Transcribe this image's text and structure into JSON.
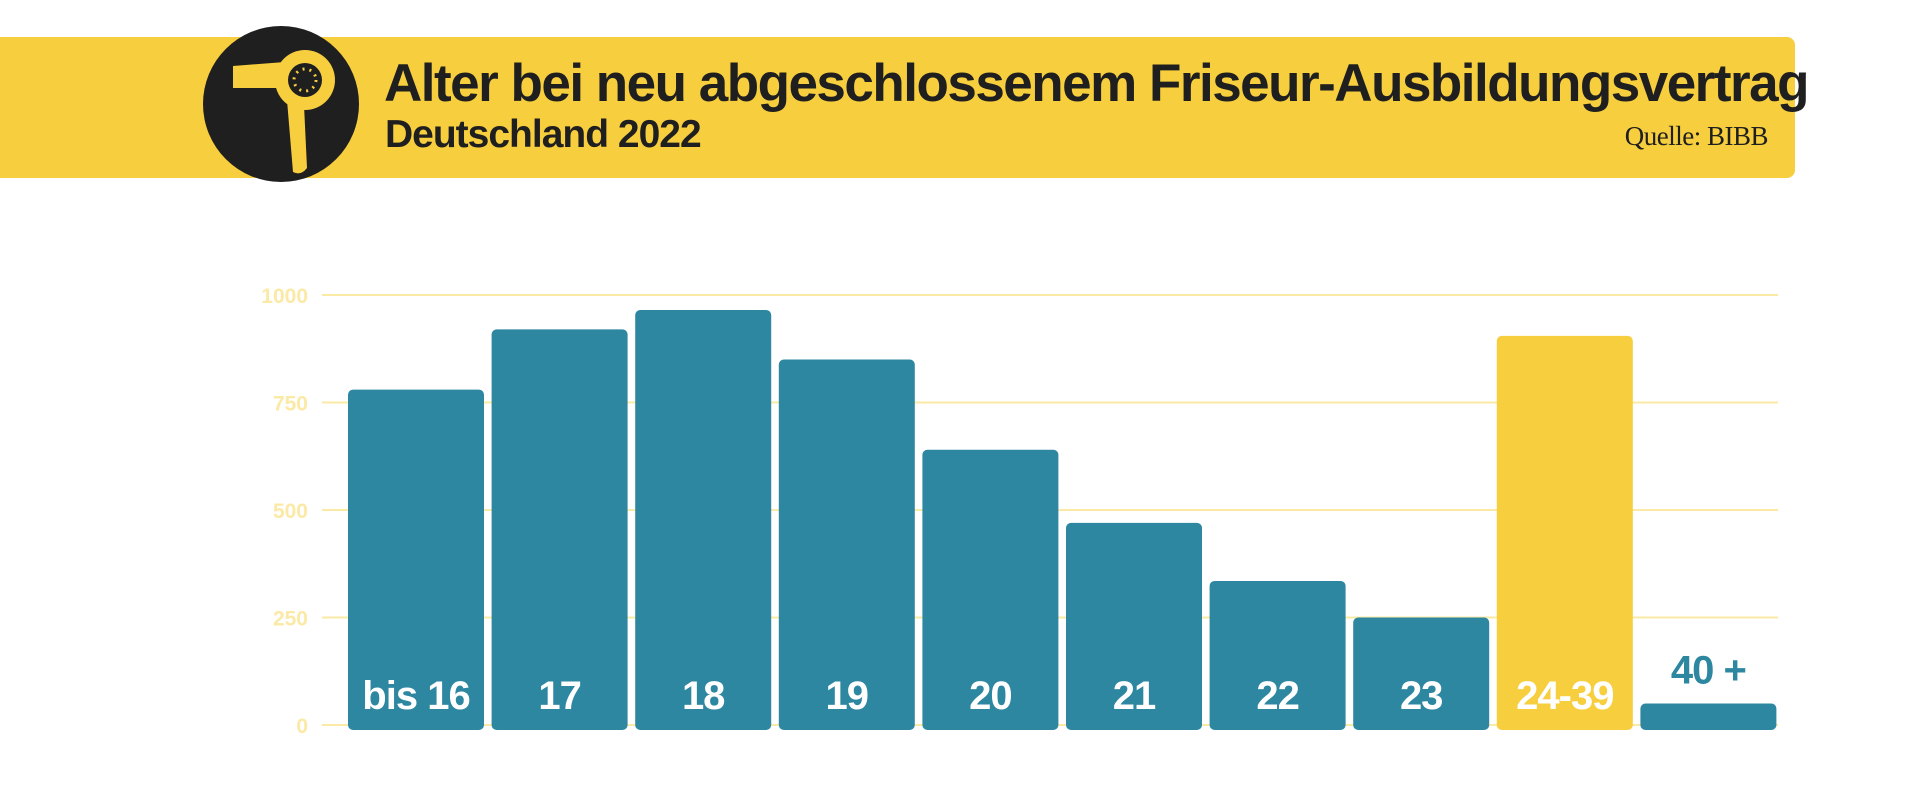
{
  "header": {
    "title": "Alter bei neu abgeschlossenem Friseur-Ausbildungsvertrag",
    "subtitle": "Deutschland 2022",
    "source": "Quelle: BIBB",
    "logo_icon": "hair-dryer-icon"
  },
  "colors": {
    "accent": "#f7ce3e",
    "bar": "#2e87a1",
    "highlight_bar": "#f7ce3e",
    "grid": "#fbe9a6",
    "tick_text": "#fbe9a6",
    "dark": "#1f1f1f",
    "label_on_bar": "#ffffff"
  },
  "chart_data": {
    "type": "bar",
    "title": "Alter bei neu abgeschlossenem Friseur-Ausbildungsvertrag",
    "subtitle": "Deutschland 2022",
    "xlabel": "",
    "ylabel": "",
    "categories": [
      "bis 16",
      "17",
      "18",
      "19",
      "20",
      "21",
      "22",
      "23",
      "24-39",
      "40 +"
    ],
    "values": [
      780,
      920,
      965,
      850,
      640,
      470,
      335,
      250,
      905,
      50
    ],
    "highlight": "24-39",
    "ylim": [
      0,
      1000
    ],
    "yticks": [
      0,
      250,
      500,
      750,
      1000
    ],
    "grid": true,
    "legend": "none"
  }
}
